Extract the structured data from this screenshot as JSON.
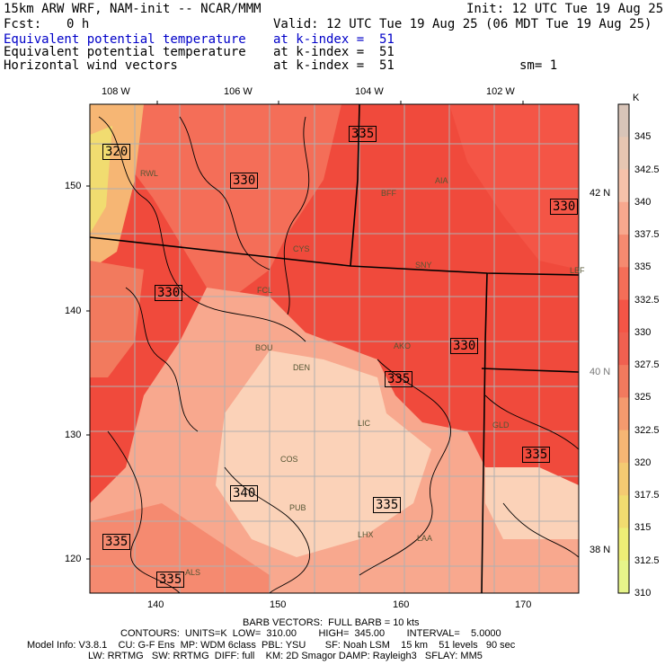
{
  "header": {
    "model": "15km ARW WRF, NAM-init -- NCAR/MMM",
    "init": "Init: 12 UTC Tue 19 Aug 25",
    "fcst_label": "Fcst:",
    "fcst_value": "0 h",
    "valid": "Valid: 12 UTC Tue 19 Aug 25 (06 MDT Tue 19 Aug 25)",
    "fields": [
      {
        "name": "Equivalent potential temperature",
        "level": "at k-index =  51"
      },
      {
        "name": "Equivalent potential temperature",
        "level": "at k-index =  51"
      },
      {
        "name": "Horizontal wind vectors",
        "level": "at k-index =  51"
      }
    ],
    "smoothing": "sm= 1"
  },
  "map": {
    "lon_labels": [
      "108 W",
      "106 W",
      "104 W",
      "102 W"
    ],
    "lat_labels": [
      "42 N",
      "40 N",
      "38 N"
    ],
    "grid_x_ticks": [
      "140",
      "150",
      "160",
      "170"
    ],
    "grid_y_ticks": [
      "150",
      "140",
      "130",
      "120"
    ],
    "stations": [
      "RWL",
      "BFF",
      "AIA",
      "CYS",
      "SNY",
      "FCL",
      "BOU",
      "AKO",
      "DEN",
      "LIC",
      "GLD",
      "COS",
      "PUB",
      "LHX",
      "LAA",
      "ALS",
      "LBF"
    ],
    "contour_labels": [
      "320",
      "330",
      "335",
      "330",
      "330",
      "330",
      "335",
      "335",
      "335",
      "340",
      "335",
      "335"
    ],
    "colors": {
      "warm": "#f04a3c",
      "mid": "#f47a66",
      "light": "#f8b49a",
      "pale": "#fbd2b8",
      "yellow": "#f5d26a",
      "state_line": "#b0b0b0",
      "contour": "#000000"
    }
  },
  "colorbar": {
    "unit": "K",
    "ticks": [
      "345",
      "342.5",
      "340",
      "337.5",
      "335",
      "332.5",
      "330",
      "327.5",
      "325",
      "322.5",
      "320",
      "317.5",
      "315",
      "312.5",
      "310"
    ],
    "colors": [
      "#d8c4b8",
      "#e6c6b2",
      "#f6c2aa",
      "#f8a88e",
      "#f58a70",
      "#f46e58",
      "#f45546",
      "#f06050",
      "#f27a5e",
      "#f49a6e",
      "#f6b674",
      "#f4ca72",
      "#f1dc70",
      "#eeee76",
      "#e6f48a"
    ]
  },
  "footer": {
    "barbs": "BARB VECTORS:  FULL BARB = 10 kts",
    "contours": "CONTOURS:  UNITS=K  LOW=  310.00        HIGH=  345.00        INTERVAL=    5.0000",
    "model_line1": "Model Info: V3.8.1    CU: G-F Ens  MP: WDM 6class  PBL: YSU       SF: Noah LSM    15 km    51 levels   90 sec",
    "model_line2": "LW: RRTMG   SW: RRTMG  DIFF: full    KM: 2D Smagor DAMP: Rayleigh3   SFLAY: MM5"
  }
}
